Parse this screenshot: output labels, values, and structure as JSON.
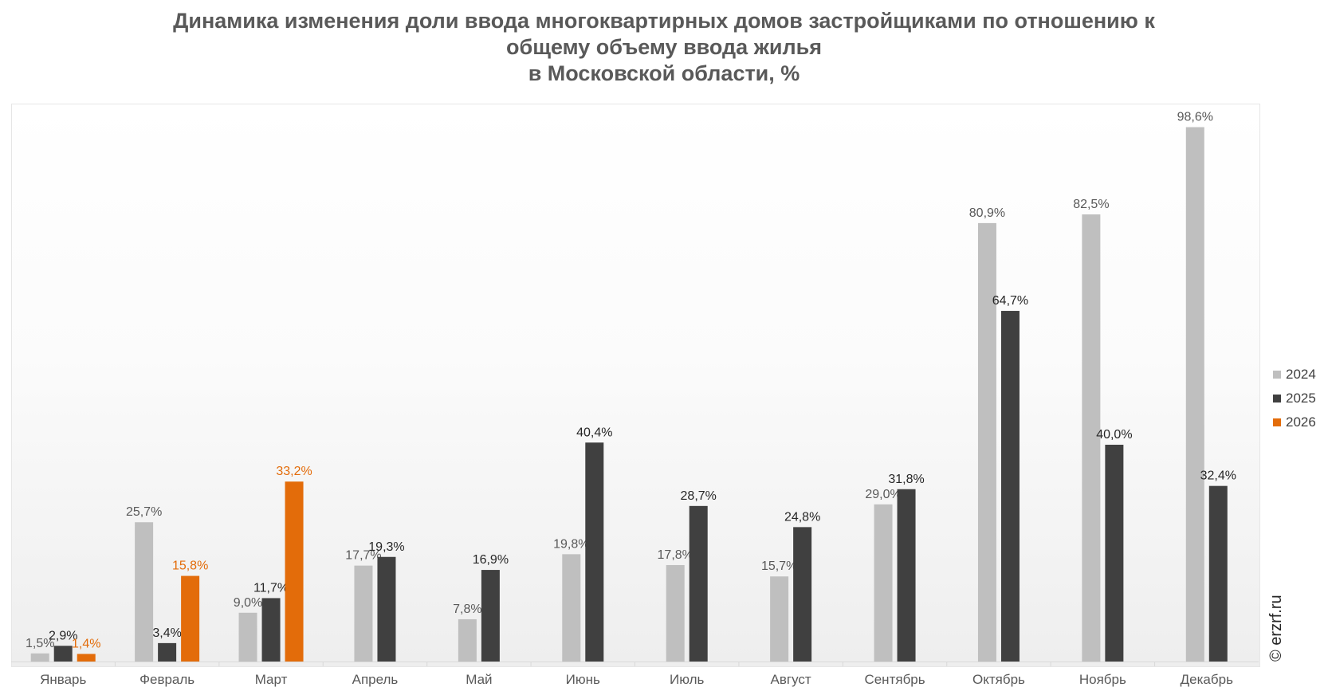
{
  "title_lines": [
    "Динамика изменения доли ввода многоквартирных домов застройщиками по отношению к",
    "общему объему ввода жилья",
    "в Московской области, %"
  ],
  "watermark": "© erzrf.ru",
  "chart_data": {
    "type": "bar",
    "title": "Динамика изменения доли ввода многоквартирных домов застройщиками по отношению к общему объему ввода жилья в Московской области, %",
    "categories": [
      "Январь",
      "Февраль",
      "Март",
      "Апрель",
      "Май",
      "Июнь",
      "Июль",
      "Август",
      "Сентябрь",
      "Октябрь",
      "Ноябрь",
      "Декабрь"
    ],
    "series": [
      {
        "name": "2024",
        "color": "#bfbfbf",
        "label_color": "#595959",
        "values": [
          1.5,
          25.7,
          9.0,
          17.7,
          7.8,
          19.8,
          17.8,
          15.7,
          29.0,
          80.9,
          82.5,
          98.6
        ]
      },
      {
        "name": "2025",
        "color": "#404040",
        "label_color": "#262626",
        "values": [
          2.9,
          3.4,
          11.7,
          19.3,
          16.9,
          40.4,
          28.7,
          24.8,
          31.8,
          64.7,
          40.0,
          32.4
        ]
      },
      {
        "name": "2026",
        "color": "#e36c0a",
        "label_color": "#e36c0a",
        "values": [
          1.4,
          15.8,
          33.2,
          null,
          null,
          null,
          null,
          null,
          null,
          null,
          null,
          null
        ]
      }
    ],
    "ylim": [
      0,
      100
    ],
    "grid": false,
    "legend_position": "right"
  }
}
